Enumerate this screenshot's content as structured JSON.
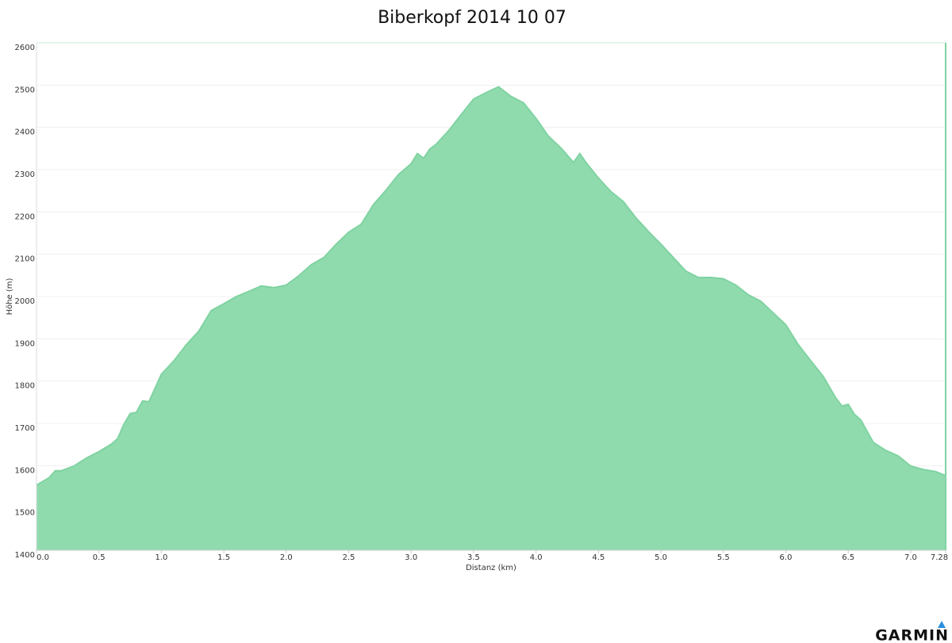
{
  "chart_data": {
    "type": "area",
    "title": "Biberkopf 2014 10 07",
    "x_label": "Distanz   (km)",
    "y_label": "Höhe (m)",
    "x": [
      0,
      0.1,
      0.15,
      0.2,
      0.3,
      0.4,
      0.5,
      0.6,
      0.65,
      0.7,
      0.75,
      0.8,
      0.85,
      0.9,
      0.95,
      1.0,
      1.1,
      1.2,
      1.3,
      1.4,
      1.5,
      1.6,
      1.7,
      1.8,
      1.9,
      2.0,
      2.1,
      2.2,
      2.3,
      2.4,
      2.5,
      2.6,
      2.7,
      2.8,
      2.9,
      3.0,
      3.05,
      3.1,
      3.15,
      3.2,
      3.3,
      3.4,
      3.5,
      3.6,
      3.7,
      3.8,
      3.9,
      4.0,
      4.1,
      4.2,
      4.3,
      4.35,
      4.4,
      4.5,
      4.6,
      4.7,
      4.8,
      4.9,
      5.0,
      5.1,
      5.2,
      5.3,
      5.4,
      5.5,
      5.6,
      5.7,
      5.8,
      5.9,
      6.0,
      6.1,
      6.2,
      6.3,
      6.4,
      6.45,
      6.5,
      6.55,
      6.6,
      6.7,
      6.8,
      6.9,
      7.0,
      7.1,
      7.2,
      7.28
    ],
    "series": [
      {
        "name": "Höhe",
        "color": "#90dbae",
        "line_color": "#7fd3a1",
        "values": [
          1554,
          1571,
          1588,
          1588,
          1599,
          1618,
          1633,
          1651,
          1664,
          1698,
          1723,
          1726,
          1753,
          1751,
          1783,
          1816,
          1848,
          1886,
          1918,
          1967,
          1983,
          2000,
          2012,
          2025,
          2021,
          2027,
          2049,
          2075,
          2092,
          2124,
          2152,
          2171,
          2218,
          2252,
          2289,
          2314,
          2338,
          2327,
          2349,
          2360,
          2392,
          2430,
          2467,
          2482,
          2496,
          2473,
          2458,
          2421,
          2379,
          2351,
          2317,
          2338,
          2317,
          2280,
          2248,
          2224,
          2186,
          2154,
          2124,
          2092,
          2060,
          2045,
          2045,
          2042,
          2027,
          2004,
          1989,
          1961,
          1933,
          1886,
          1848,
          1811,
          1760,
          1741,
          1745,
          1721,
          1708,
          1655,
          1636,
          1623,
          1599,
          1591,
          1586,
          1576
        ]
      }
    ],
    "xlim": [
      0,
      7.28
    ],
    "ylim": [
      1400,
      2600
    ],
    "xticks": [
      {
        "value": 0,
        "label": "0.0"
      },
      0.5,
      {
        "value": 1,
        "label": "1.0"
      },
      1.5,
      {
        "value": 2,
        "label": "2.0"
      },
      2.5,
      {
        "value": 3,
        "label": "3.0"
      },
      3.5,
      {
        "value": 4,
        "label": "4.0"
      },
      4.5,
      {
        "value": 5,
        "label": "5.0"
      },
      5.5,
      {
        "value": 6,
        "label": "6.0"
      },
      6.5,
      {
        "value": 7,
        "label": "7.0"
      },
      7.28
    ],
    "yticks": [
      1400,
      1500,
      1600,
      1700,
      1800,
      1900,
      2000,
      2100,
      2200,
      2300,
      2400,
      2500,
      2600
    ],
    "grid": true
  },
  "logo": "GARMIN"
}
